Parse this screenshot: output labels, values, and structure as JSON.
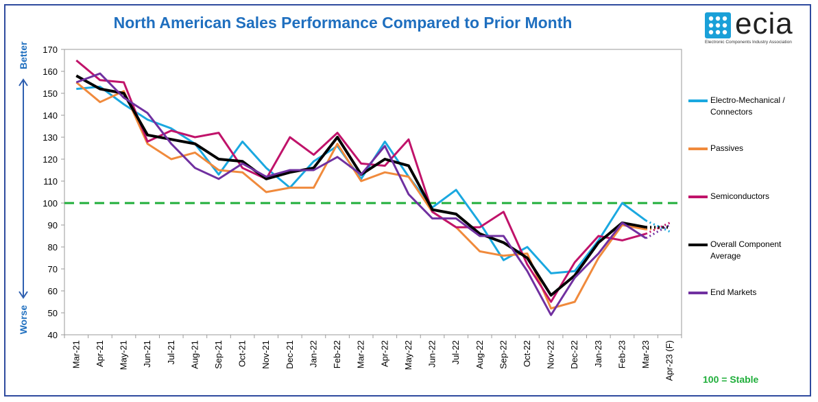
{
  "title": "North American Sales Performance Compared to Prior Month",
  "logo": {
    "text": "ecia",
    "subtitle": "Electronic Components Industry Association",
    "color": "#1aa0d8"
  },
  "side_labels": {
    "top": "Better",
    "bottom": "Worse"
  },
  "stable_note": "100 = Stable",
  "chart_data": {
    "type": "line",
    "categories": [
      "Mar-21",
      "Apr-21",
      "May-21",
      "Jun-21",
      "Jul-21",
      "Aug-21",
      "Sep-21",
      "Oct-21",
      "Nov-21",
      "Dec-21",
      "Jan-22",
      "Feb-22",
      "Mar-22",
      "Apr-22",
      "May-22",
      "Jun-22",
      "Jul-22",
      "Aug-22",
      "Sep-22",
      "Oct-22",
      "Nov-22",
      "Dec-22",
      "Jan-23",
      "Feb-23",
      "Mar-23",
      "Apr-23 (F)"
    ],
    "ylim": [
      40,
      170
    ],
    "yticks": [
      40,
      50,
      60,
      70,
      80,
      90,
      100,
      110,
      120,
      130,
      140,
      150,
      160,
      170
    ],
    "reference_line": {
      "value": 100,
      "color": "#1fae3a"
    },
    "forecast_from_index": 24,
    "series": [
      {
        "name": "Electro-Mechanical / Connectors",
        "color": "#1aa8e0",
        "width": 3,
        "values": [
          152,
          153,
          145,
          138,
          134,
          127,
          113,
          128,
          116,
          107,
          119,
          126,
          111,
          128,
          112,
          98,
          106,
          91,
          74,
          80,
          68,
          69,
          83,
          100,
          92,
          87
        ]
      },
      {
        "name": "Passives",
        "color": "#f08a3c",
        "width": 3,
        "values": [
          155,
          146,
          151,
          127,
          120,
          123,
          115,
          114,
          105,
          107,
          107,
          127,
          110,
          114,
          112,
          96,
          89,
          78,
          76,
          77,
          52,
          55,
          75,
          90,
          88,
          89
        ]
      },
      {
        "name": "Semiconductors",
        "color": "#c0136a",
        "width": 3,
        "values": [
          165,
          156,
          155,
          128,
          133,
          130,
          132,
          116,
          111,
          130,
          122,
          132,
          118,
          117,
          129,
          96,
          89,
          89,
          96,
          72,
          55,
          73,
          85,
          83,
          86,
          91
        ]
      },
      {
        "name": "Overall Component Average",
        "color": "#000000",
        "width": 4,
        "values": [
          158,
          152,
          150,
          131,
          129,
          127,
          120,
          119,
          111,
          114,
          116,
          130,
          113,
          120,
          117,
          97,
          95,
          86,
          82,
          75,
          58,
          67,
          82,
          91,
          89,
          89
        ]
      },
      {
        "name": "End Markets",
        "color": "#7030a0",
        "width": 3,
        "values": [
          155,
          159,
          148,
          141,
          127,
          116,
          111,
          118,
          112,
          115,
          115,
          121,
          113,
          126,
          104,
          93,
          93,
          85,
          85,
          69,
          49,
          66,
          77,
          91,
          84,
          90
        ]
      }
    ]
  }
}
